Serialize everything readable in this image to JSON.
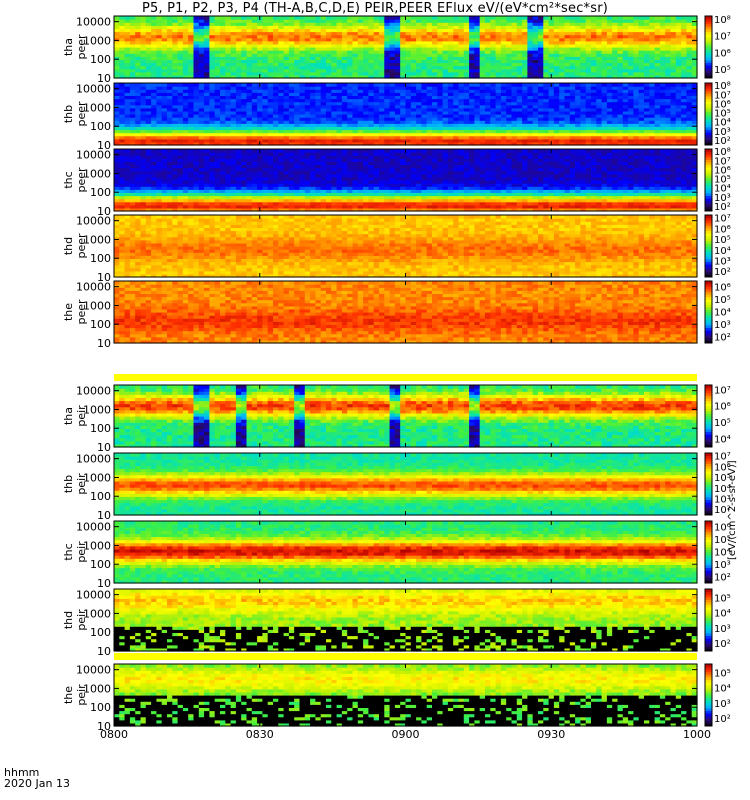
{
  "title": "P5, P1, P2, P3, P4 (TH-A,B,C,D,E) PEIR,PEER EFlux eV/(eV*cm²*sec*sr)",
  "footer": {
    "time_label": "hhmm",
    "date_label": "2020 Jan 13"
  },
  "colorbar_unit": "[eV/(cm^2-s-sr-eV)]",
  "colors": {
    "colormap": [
      "#000000",
      "#2a0a6e",
      "#0000ff",
      "#00b0ff",
      "#00e0c0",
      "#40f040",
      "#c8f000",
      "#ffff00",
      "#ffa000",
      "#ff3000",
      "#b00000"
    ]
  },
  "chart_data": {
    "type": "heatmap",
    "x_ticks": [
      "0800",
      "0830",
      "0900",
      "0930",
      "1000"
    ],
    "xlim": [
      "0800",
      "1000"
    ],
    "y_scale": "log",
    "ylim": [
      10,
      20000
    ],
    "y_ticks": [
      "10",
      "100",
      "1000",
      "10000"
    ],
    "panels": [
      {
        "probe": "tha",
        "species": "peer",
        "cb_ticks": [
          "10⁵",
          "10⁶",
          "10⁷",
          "10⁸"
        ],
        "cb_log_range": [
          4.5,
          8.2
        ],
        "band_log_energy": 3.2,
        "band_log_flux": 7.6,
        "background_log_flux": 6.2,
        "dropouts": [
          "0818",
          "0857",
          "0858",
          "0914",
          "0927"
        ]
      },
      {
        "probe": "thb",
        "species": "peer",
        "cb_ticks": [
          "10²",
          "10³",
          "10⁴",
          "10⁵",
          "10⁶",
          "10⁷",
          "10⁸"
        ],
        "cb_log_range": [
          1.5,
          8.3
        ],
        "band_log_energy": 1.2,
        "band_log_flux": 7.8,
        "background_log_flux": 3.0
      },
      {
        "probe": "thc",
        "species": "peer",
        "cb_ticks": [
          "10²",
          "10³",
          "10⁴",
          "10⁵",
          "10⁶",
          "10⁷",
          "10⁸"
        ],
        "cb_log_range": [
          1.5,
          8.3
        ],
        "band_log_energy": 1.3,
        "band_log_flux": 7.8,
        "background_log_flux": 2.6
      },
      {
        "probe": "thd",
        "species": "peer",
        "cb_ticks": [
          "10²",
          "10³",
          "10⁴",
          "10⁵",
          "10⁶",
          "10⁷"
        ],
        "cb_log_range": [
          1.5,
          7.3
        ],
        "band_log_energy": 2.5,
        "band_log_flux": 6.4,
        "background_log_flux": 5.9
      },
      {
        "probe": "the",
        "species": "peer",
        "cb_ticks": [
          "10²",
          "10³",
          "10⁴",
          "10⁵",
          "10⁶"
        ],
        "cb_log_range": [
          1.5,
          6.5
        ],
        "band_log_energy": 2.2,
        "band_log_flux": 6.0,
        "background_log_flux": 5.6
      },
      {
        "probe": "tha",
        "species": "peir",
        "cb_ticks": [
          "10⁴",
          "10⁵",
          "10⁶",
          "10⁷"
        ],
        "cb_log_range": [
          3.5,
          7.3
        ],
        "band_log_energy": 3.2,
        "band_log_flux": 6.9,
        "background_log_flux": 5.2,
        "dropouts": [
          "0818",
          "0826",
          "0838",
          "0858",
          "0914"
        ]
      },
      {
        "probe": "thb",
        "species": "peir",
        "cb_ticks": [
          "10²",
          "10³",
          "10⁴",
          "10⁵",
          "10⁶",
          "10⁷"
        ],
        "cb_log_range": [
          1.5,
          7.3
        ],
        "band_log_energy": 2.6,
        "band_log_flux": 6.6,
        "background_log_flux": 4.0
      },
      {
        "probe": "thc",
        "species": "peir",
        "cb_ticks": [
          "10²",
          "10³",
          "10⁴",
          "10⁵",
          "10⁶"
        ],
        "cb_log_range": [
          1.5,
          6.5
        ],
        "band_log_energy": 2.7,
        "band_log_flux": 6.3,
        "background_log_flux": 3.8
      },
      {
        "probe": "thd",
        "species": "peir",
        "cb_ticks": [
          "10²",
          "10³",
          "10⁴",
          "10⁵"
        ],
        "cb_log_range": [
          1.5,
          5.6
        ],
        "band_log_energy": 3.7,
        "band_log_flux": 4.6,
        "background_log_flux": 3.8,
        "sparse_below_log_energy": 2.3
      },
      {
        "probe": "the",
        "species": "peir",
        "cb_ticks": [
          "10²",
          "10³",
          "10⁴",
          "10⁵"
        ],
        "cb_log_range": [
          1.5,
          5.6
        ],
        "band_log_energy": 3.5,
        "band_log_flux": 4.4,
        "background_log_flux": 3.6,
        "sparse_below_log_energy": 2.6
      }
    ]
  }
}
